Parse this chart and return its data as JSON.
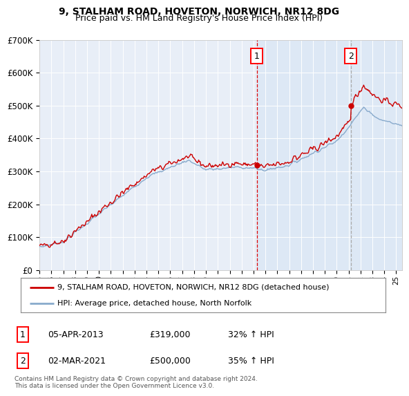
{
  "title": "9, STALHAM ROAD, HOVETON, NORWICH, NR12 8DG",
  "subtitle": "Price paid vs. HM Land Registry's House Price Index (HPI)",
  "legend_line1": "9, STALHAM ROAD, HOVETON, NORWICH, NR12 8DG (detached house)",
  "legend_line2": "HPI: Average price, detached house, North Norfolk",
  "annotation1_date": "05-APR-2013",
  "annotation1_price": "£319,000",
  "annotation1_hpi": "32% ↑ HPI",
  "annotation1_year": 2013.27,
  "annotation1_value": 319000,
  "annotation2_date": "02-MAR-2021",
  "annotation2_price": "£500,000",
  "annotation2_hpi": "35% ↑ HPI",
  "annotation2_year": 2021.17,
  "annotation2_value": 500000,
  "footer": "Contains HM Land Registry data © Crown copyright and database right 2024.\nThis data is licensed under the Open Government Licence v3.0.",
  "line1_color": "#cc0000",
  "line2_color": "#88aacc",
  "vline1_color": "#dd0000",
  "vline2_color": "#aaaaaa",
  "shade_color": "#dde8f5",
  "bg_color": "#e8eef7",
  "plot_bg": "#ffffff",
  "ylim": [
    0,
    700000
  ],
  "xlim_start": 1995.0,
  "xlim_end": 2025.5,
  "title_fontsize": 10,
  "subtitle_fontsize": 9
}
